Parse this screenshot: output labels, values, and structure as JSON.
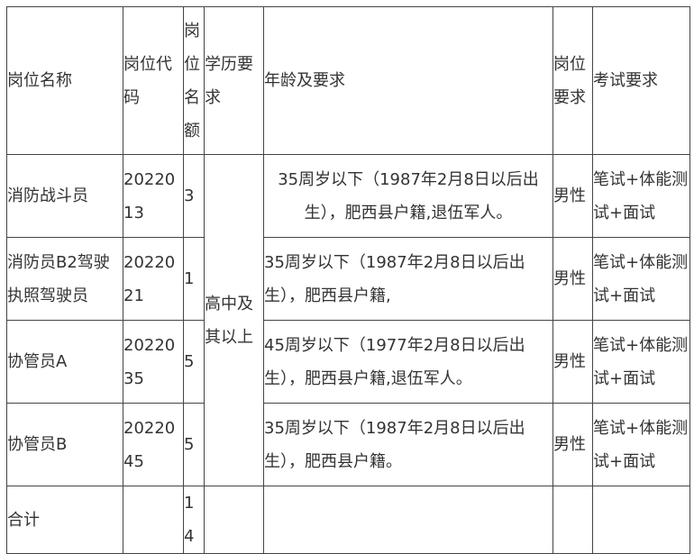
{
  "headers": [
    "岗位名称",
    "岗位代码",
    "岗位名额",
    "学历要求",
    "年龄及要求",
    "岗位要求",
    "考试要求"
  ],
  "education_merged": "高中及其以上",
  "rows": [
    {
      "name": "消防战斗员",
      "code": "2022013",
      "count": "3",
      "age": "35周岁以下（1987年2月8日以后出生），肥西县户籍,退伍军人。",
      "gender": "男性",
      "exam": "笔试+体能测试+面试"
    },
    {
      "name": "消防员B2驾驶执照驾驶员",
      "code": "2022021",
      "count": "1",
      "age": "35周岁以下（1987年2月8日以后出生），肥西县户籍,",
      "gender": "男性",
      "exam": "笔试+体能测试+面试"
    },
    {
      "name": "协管员A",
      "code": "2022035",
      "count": "5",
      "age": "45周岁以下（1977年2月8日以后出生），肥西县户籍,退伍军人。",
      "gender": "男性",
      "exam": "笔试+体能测试+面试"
    },
    {
      "name": "协管员B",
      "code": "2022045",
      "count": "5",
      "age": "35周岁以下（1987年2月8日以后出生），肥西县户籍。",
      "gender": "男性",
      "exam": "笔试+体能测试+面试"
    }
  ],
  "total": {
    "label": "合计",
    "count": "14"
  }
}
